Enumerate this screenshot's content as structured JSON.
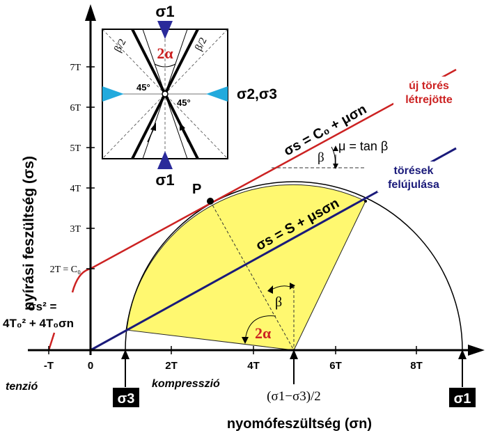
{
  "axes": {
    "y_label": "nyírási feszültség (σs)",
    "x_label": "nyomófeszültség (σn)",
    "y_ticks": [
      "2T = C₀",
      "3T",
      "4T",
      "5T",
      "6T",
      "7T"
    ],
    "x_ticks": [
      "-T",
      "0",
      "2T",
      "4T",
      "6T",
      "8T"
    ],
    "tension": "tenzió",
    "compression": "kompresszió"
  },
  "inset": {
    "sigma1_top": "σ1",
    "sigma1_bottom": "σ1",
    "sigma23": "σ2,σ3",
    "two_alpha": "2α",
    "beta_left": "β/2",
    "beta_right": "β/2",
    "angle_left": "45°",
    "angle_right": "45°"
  },
  "labels": {
    "point_p": "P",
    "new_fracture_line1": "új törés",
    "new_fracture_line2": "létrejötte",
    "reactivation_line1": "törések",
    "reactivation_line2": "felújulása",
    "mu_eq": "μ = tan β",
    "beta": "β",
    "beta_center": "β",
    "two_alpha_center": "2α",
    "mid_stress": "(σ1−σ3)/2",
    "box_sigma3": "σ3",
    "box_sigma1": "σ1",
    "parabola_eq_line1": "σs² =",
    "parabola_eq_line2": "4T₀² + 4T₀σn",
    "eq_red": "σs = C₀ + μσn",
    "eq_blue": "σs = S + μsσn"
  },
  "colors": {
    "red": "#cc2222",
    "navy": "#1a1a7a",
    "yellow": "#fff870",
    "cyan": "#22aadd",
    "arrow_blue": "#2a2a9a"
  }
}
